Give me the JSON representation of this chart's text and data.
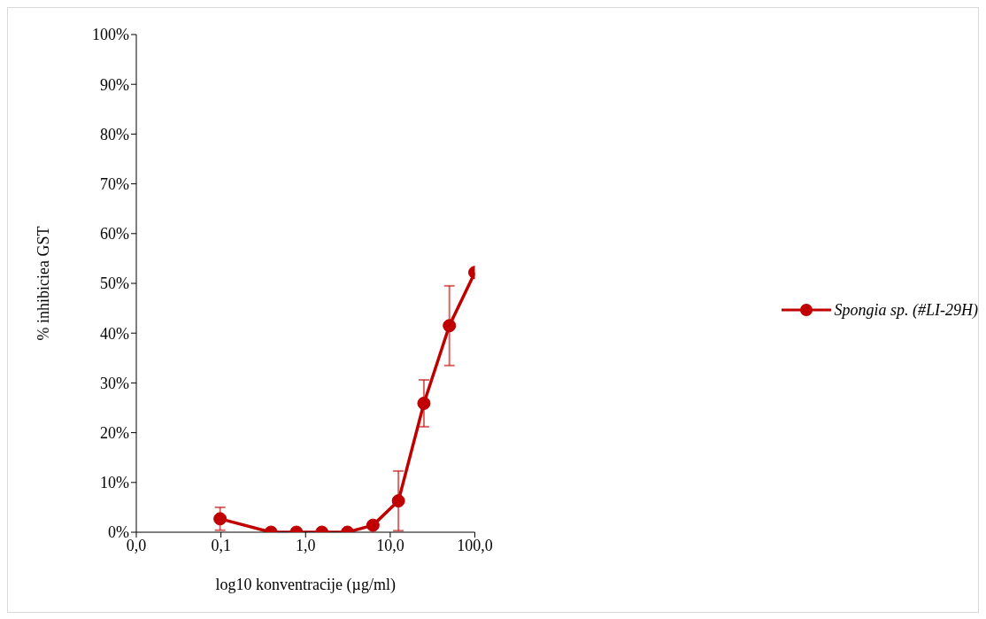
{
  "chart_data": {
    "type": "line",
    "xlabel": "log10 konventracije (µg/ml)",
    "ylabel": "% inhibiciea GST",
    "log": "x",
    "x": [
      0.0977,
      0.195,
      0.39,
      0.78,
      1.56,
      3.125,
      6.25,
      12.5,
      25,
      50,
      100
    ],
    "series": [
      {
        "name": "Spongia sp. (#LI-29H)",
        "color": "#c00000",
        "values": [
          2.7,
          null,
          0,
          0,
          0,
          0,
          1.4,
          6.3,
          25.9,
          41.5,
          52.2
        ],
        "errors": [
          2.3,
          null,
          null,
          null,
          null,
          null,
          null,
          6,
          4.7,
          8,
          null
        ]
      }
    ],
    "xlim": [
      0.01,
      100
    ],
    "xticks": [
      {
        "value": 0.01,
        "label": "0,0"
      },
      {
        "value": 0.1,
        "label": "0,1"
      },
      {
        "value": 1,
        "label": "1,0"
      },
      {
        "value": 10,
        "label": "10,0"
      },
      {
        "value": 100,
        "label": "100,0"
      }
    ],
    "ylim": [
      0,
      100
    ],
    "yticks": [
      {
        "value": 0,
        "label": "0%"
      },
      {
        "value": 10,
        "label": "10%"
      },
      {
        "value": 20,
        "label": "20%"
      },
      {
        "value": 30,
        "label": "30%"
      },
      {
        "value": 40,
        "label": "40%"
      },
      {
        "value": 50,
        "label": "50%"
      },
      {
        "value": 60,
        "label": "60%"
      },
      {
        "value": 70,
        "label": "70%"
      },
      {
        "value": 80,
        "label": "80%"
      },
      {
        "value": 90,
        "label": "90%"
      },
      {
        "value": 100,
        "label": "100%"
      }
    ],
    "grid": false,
    "legend": "right",
    "marker": "circle",
    "line_style": "solid"
  }
}
